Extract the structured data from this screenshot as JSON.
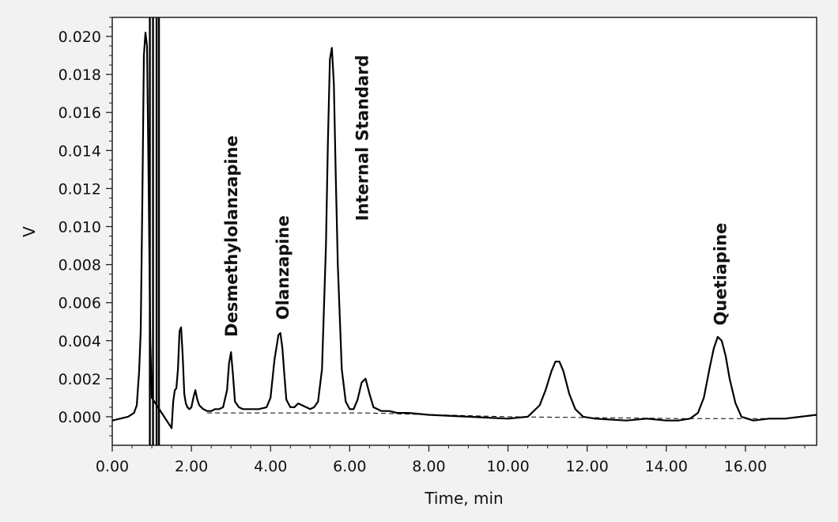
{
  "chart_data": {
    "type": "line",
    "xlabel": "Time, min",
    "ylabel": "V",
    "xlim": [
      0,
      17.8
    ],
    "ylim": [
      -0.0015,
      0.021
    ],
    "x_ticks": [
      "0.00",
      "2.00",
      "4.00",
      "6.00",
      "8.00",
      "10.00",
      "12.00",
      "14.00",
      "16.00"
    ],
    "x_tick_values": [
      0,
      2,
      4,
      6,
      8,
      10,
      12,
      14,
      16
    ],
    "y_ticks": [
      "0.000",
      "0.002",
      "0.004",
      "0.006",
      "0.008",
      "0.010",
      "0.012",
      "0.014",
      "0.016",
      "0.018",
      "0.020"
    ],
    "y_tick_values": [
      0,
      0.002,
      0.004,
      0.006,
      0.008,
      0.01,
      0.012,
      0.014,
      0.016,
      0.018,
      0.02
    ],
    "grid": false,
    "series": [
      {
        "x": [
          0,
          0.2,
          0.4,
          0.55,
          0.62,
          0.68,
          0.72,
          0.76,
          0.8,
          0.84,
          0.88,
          0.92,
          0.96,
          1.0,
          1.5,
          1.54,
          1.58,
          1.62,
          1.66,
          1.7,
          1.74,
          1.78,
          1.82,
          1.86,
          1.9,
          1.95,
          2.0,
          2.05,
          2.1,
          2.15,
          2.2,
          2.25,
          2.3,
          2.4,
          2.5,
          2.6,
          2.7,
          2.8,
          2.9,
          2.95,
          3.0,
          3.05,
          3.1,
          3.2,
          3.3,
          3.5,
          3.7,
          3.9,
          4.0,
          4.1,
          4.2,
          4.25,
          4.3,
          4.35,
          4.4,
          4.5,
          4.6,
          4.7,
          4.8,
          4.9,
          5.0,
          5.1,
          5.2,
          5.3,
          5.4,
          5.45,
          5.5,
          5.55,
          5.6,
          5.65,
          5.7,
          5.8,
          5.9,
          6.0,
          6.1,
          6.2,
          6.3,
          6.4,
          6.5,
          6.6,
          6.7,
          6.8,
          7.0,
          7.2,
          7.5,
          8.0,
          9.0,
          10.0,
          10.5,
          10.8,
          10.95,
          11.1,
          11.2,
          11.3,
          11.4,
          11.55,
          11.7,
          11.9,
          12.2,
          13.0,
          13.5,
          14.0,
          14.3,
          14.6,
          14.8,
          14.95,
          15.1,
          15.2,
          15.3,
          15.4,
          15.5,
          15.6,
          15.75,
          15.9,
          16.2,
          16.6,
          17.0,
          17.4,
          17.8
        ],
        "y": [
          -0.0002,
          -0.0001,
          0.0,
          0.0002,
          0.0006,
          0.0024,
          0.0045,
          0.0112,
          0.019,
          0.0202,
          0.0195,
          0.012,
          0.004,
          0.001,
          -0.0006,
          0.0008,
          0.0014,
          0.0015,
          0.0025,
          0.0045,
          0.0047,
          0.0032,
          0.0012,
          0.0007,
          0.0005,
          0.0004,
          0.0005,
          0.001,
          0.0014,
          0.0009,
          0.0006,
          0.0005,
          0.0004,
          0.0003,
          0.0003,
          0.0004,
          0.0004,
          0.0005,
          0.0014,
          0.0028,
          0.0034,
          0.0022,
          0.0008,
          0.0005,
          0.0004,
          0.0004,
          0.0004,
          0.0005,
          0.001,
          0.003,
          0.0043,
          0.0044,
          0.0036,
          0.0022,
          0.0009,
          0.0005,
          0.0005,
          0.0007,
          0.0006,
          0.0005,
          0.0004,
          0.0005,
          0.0008,
          0.0025,
          0.009,
          0.0145,
          0.0188,
          0.0194,
          0.0175,
          0.0125,
          0.008,
          0.0025,
          0.0008,
          0.0004,
          0.0004,
          0.0009,
          0.0018,
          0.002,
          0.0012,
          0.0005,
          0.0004,
          0.0003,
          0.0003,
          0.0002,
          0.0002,
          0.0001,
          0.0,
          -0.0001,
          0.0,
          0.0006,
          0.0014,
          0.0024,
          0.0029,
          0.0029,
          0.0024,
          0.0012,
          0.0004,
          0.0,
          -0.0001,
          -0.0002,
          -0.0001,
          -0.0002,
          -0.0002,
          -0.0001,
          0.0002,
          0.001,
          0.0026,
          0.0036,
          0.0042,
          0.004,
          0.0032,
          0.002,
          0.0007,
          0.0,
          -0.0002,
          -0.0001,
          -0.0001,
          0.0,
          0.0001
        ]
      },
      {
        "style": "dashed",
        "x": [
          2.4,
          6.4,
          10.0,
          14.5,
          16.6
        ],
        "y": [
          0.0002,
          0.0002,
          0.0,
          -0.0001,
          -0.0001
        ]
      }
    ],
    "vertical_markers": [
      0.95,
      1.03,
      1.12,
      1.18
    ],
    "annotations": [
      {
        "text": "Desmethylolanzapine",
        "x": 3.0,
        "y": 0.0042
      },
      {
        "text": "Olanzapine",
        "x": 4.3,
        "y": 0.0051
      },
      {
        "text": "Internal Standard",
        "x": 6.3,
        "y": 0.0103
      },
      {
        "text": "Quetiapine",
        "x": 15.35,
        "y": 0.0048
      }
    ]
  }
}
